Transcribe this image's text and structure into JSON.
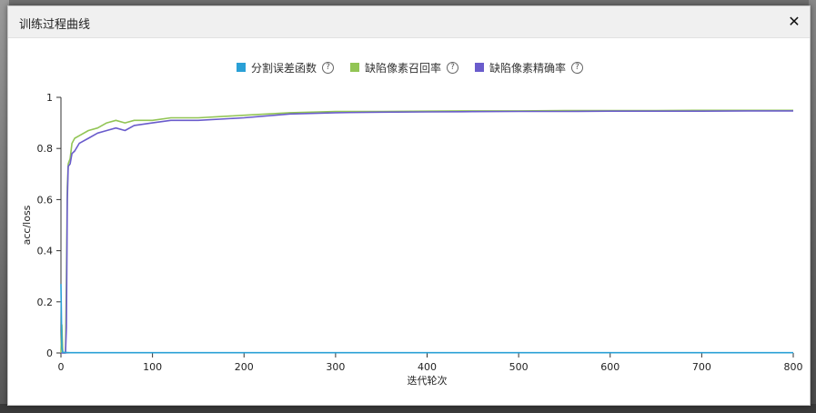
{
  "window": {
    "title": "训练过程曲线",
    "close_icon": "close-icon"
  },
  "legend": [
    {
      "label": "分割误差函数",
      "color": "#2aa0d6",
      "help_icon": "question-circle-icon",
      "help_glyph": "?"
    },
    {
      "label": "缺陷像素召回率",
      "color": "#92c555",
      "help_icon": "question-circle-icon",
      "help_glyph": "?"
    },
    {
      "label": "缺陷像素精确率",
      "color": "#6a5ccc",
      "help_icon": "question-circle-icon",
      "help_glyph": "?"
    }
  ],
  "chart_data": {
    "type": "line",
    "xlabel": "迭代轮次",
    "ylabel": "acc/loss",
    "xlim": [
      0,
      800
    ],
    "ylim": [
      0,
      1
    ],
    "xticks": [
      "0",
      "100",
      "200",
      "300",
      "400",
      "500",
      "600",
      "700",
      "800"
    ],
    "yticks": [
      "0",
      "0.2",
      "0.4",
      "0.6",
      "0.8",
      "1"
    ],
    "grid": false,
    "series": [
      {
        "name": "分割误差函数",
        "color": "#2aa0d6",
        "x": [
          0,
          1,
          2,
          3,
          5,
          10,
          50,
          100,
          200,
          300,
          400,
          500,
          600,
          700,
          800
        ],
        "y": [
          0.27,
          0.02,
          0.003,
          0.002,
          0.002,
          0.001,
          0.001,
          0.001,
          0.001,
          0.001,
          0.001,
          0.001,
          0.001,
          0.001,
          0.001
        ]
      },
      {
        "name": "缺陷像素召回率",
        "color": "#92c555",
        "x": [
          0,
          1,
          2,
          3,
          4,
          5,
          6,
          7,
          8,
          10,
          12,
          15,
          20,
          30,
          40,
          50,
          60,
          70,
          80,
          100,
          120,
          150,
          200,
          250,
          300,
          350,
          400,
          450,
          500,
          550,
          600,
          650,
          700,
          750,
          800
        ],
        "y": [
          0.0,
          0.11,
          0.0,
          0.0,
          0.0,
          0.0,
          0.3,
          0.65,
          0.74,
          0.76,
          0.82,
          0.84,
          0.85,
          0.87,
          0.88,
          0.9,
          0.91,
          0.9,
          0.91,
          0.91,
          0.92,
          0.92,
          0.93,
          0.94,
          0.945,
          0.945,
          0.946,
          0.947,
          0.947,
          0.948,
          0.948,
          0.948,
          0.949,
          0.949,
          0.949
        ]
      },
      {
        "name": "缺陷像素精确率",
        "color": "#6a5ccc",
        "x": [
          0,
          1,
          2,
          3,
          4,
          5,
          6,
          7,
          8,
          10,
          12,
          15,
          20,
          30,
          40,
          50,
          60,
          70,
          80,
          100,
          120,
          150,
          200,
          250,
          300,
          350,
          400,
          450,
          500,
          550,
          600,
          650,
          700,
          750,
          800
        ],
        "y": [
          0.0,
          0.0,
          0.0,
          0.0,
          0.0,
          0.0,
          0.1,
          0.6,
          0.73,
          0.74,
          0.78,
          0.79,
          0.82,
          0.84,
          0.86,
          0.87,
          0.88,
          0.87,
          0.89,
          0.9,
          0.91,
          0.91,
          0.92,
          0.935,
          0.94,
          0.942,
          0.943,
          0.944,
          0.945,
          0.945,
          0.946,
          0.946,
          0.946,
          0.947,
          0.947
        ]
      }
    ]
  }
}
